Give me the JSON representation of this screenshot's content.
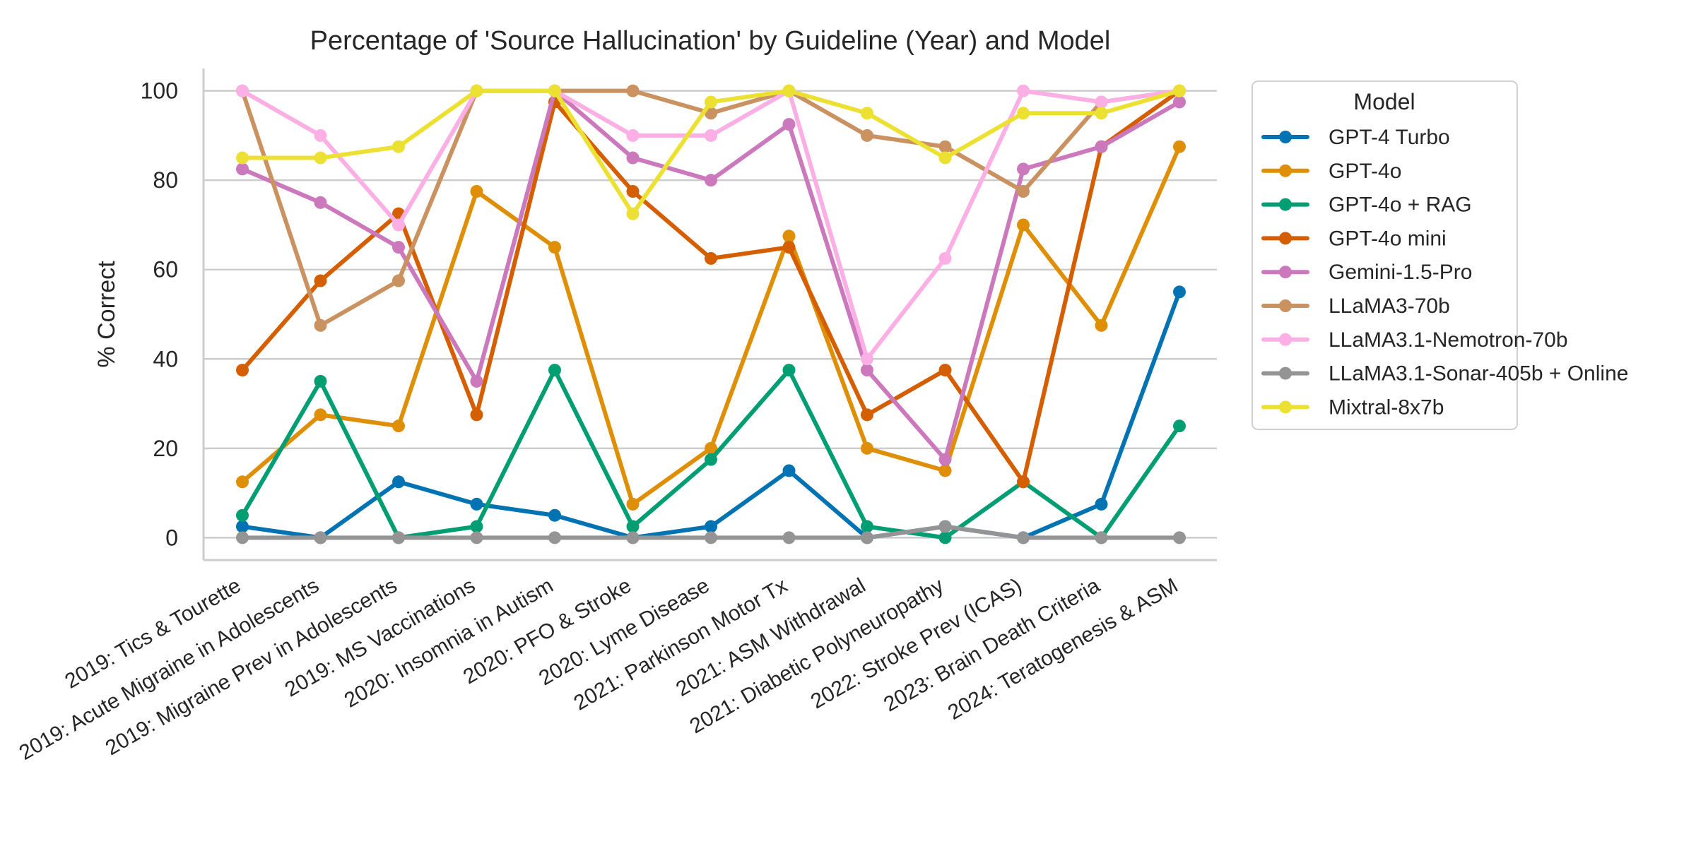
{
  "chart_data": {
    "type": "line",
    "title": "Percentage of 'Source Hallucination' by Guideline (Year) and Model",
    "xlabel": "",
    "ylabel": "% Correct",
    "ylim": [
      -5,
      105
    ],
    "yticks": [
      0,
      20,
      40,
      60,
      80,
      100
    ],
    "grid": "horizontal",
    "legend_title": "Model",
    "legend_position": "upper right, outside plot",
    "categories": [
      "2019: Tics & Tourette",
      "2019: Acute Migraine in Adolescents",
      "2019: Migraine Prev in Adolescents",
      "2019: MS Vaccinations",
      "2020: Insomnia in Autism",
      "2020: PFO & Stroke",
      "2020: Lyme Disease",
      "2021: Parkinson Motor Tx",
      "2021: ASM Withdrawal",
      "2021: Diabetic Polyneuropathy",
      "2022: Stroke Prev (ICAS)",
      "2023: Brain Death Criteria",
      "2024: Teratogenesis & ASM"
    ],
    "series": [
      {
        "name": "GPT-4 Turbo",
        "color": "#0173b2",
        "values": [
          2.5,
          0,
          12.5,
          7.5,
          5,
          0,
          2.5,
          15,
          0,
          2.5,
          0,
          7.5,
          55
        ]
      },
      {
        "name": "GPT-4o",
        "color": "#de8f05",
        "values": [
          12.5,
          27.5,
          25,
          77.5,
          65,
          7.5,
          20,
          67.5,
          20,
          15,
          70,
          47.5,
          87.5
        ]
      },
      {
        "name": "GPT-4o + RAG",
        "color": "#029e73",
        "values": [
          5,
          35,
          0,
          2.5,
          37.5,
          2.5,
          17.5,
          37.5,
          2.5,
          0,
          12.5,
          0,
          25
        ]
      },
      {
        "name": "GPT-4o mini",
        "color": "#d55e00",
        "values": [
          37.5,
          57.5,
          72.5,
          27.5,
          97.5,
          77.5,
          62.5,
          65,
          27.5,
          37.5,
          12.5,
          87.5,
          100
        ]
      },
      {
        "name": "Gemini-1.5-Pro",
        "color": "#cc78bc",
        "values": [
          82.5,
          75,
          65,
          35,
          100,
          85,
          80,
          92.5,
          37.5,
          17.5,
          82.5,
          87.5,
          97.5
        ]
      },
      {
        "name": "LLaMA3-70b",
        "color": "#ca9161",
        "values": [
          100,
          47.5,
          57.5,
          100,
          100,
          100,
          95,
          100,
          90,
          87.5,
          77.5,
          97.5,
          100
        ]
      },
      {
        "name": "LLaMA3.1-Nemotron-70b",
        "color": "#fbafe4",
        "values": [
          100,
          90,
          70,
          100,
          100,
          90,
          90,
          100,
          40,
          62.5,
          100,
          97.5,
          100
        ]
      },
      {
        "name": "LLaMA3.1-Sonar-405b + Online",
        "color": "#949494",
        "values": [
          0,
          0,
          0,
          0,
          0,
          0,
          0,
          0,
          0,
          2.5,
          0,
          0,
          0
        ]
      },
      {
        "name": "Mixtral-8x7b",
        "color": "#ece133",
        "values": [
          85,
          85,
          87.5,
          100,
          100,
          72.5,
          97.5,
          100,
          95,
          85,
          95,
          95,
          100
        ]
      }
    ]
  }
}
